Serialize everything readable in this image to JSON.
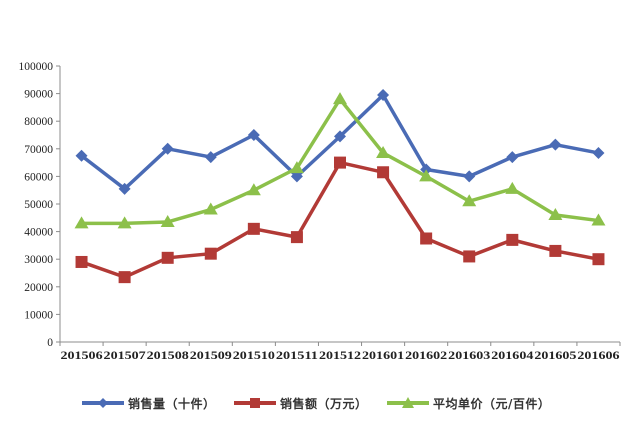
{
  "chart_data": {
    "type": "line",
    "title": "",
    "xlabel": "",
    "ylabel": "",
    "ylim": [
      0,
      100000
    ],
    "yticks": [
      0,
      10000,
      20000,
      30000,
      40000,
      50000,
      60000,
      70000,
      80000,
      90000,
      100000
    ],
    "grid": false,
    "legend_position": "bottom",
    "categories": [
      "201506",
      "201507",
      "201508",
      "201509",
      "201510",
      "201511",
      "201512",
      "201601",
      "201602",
      "201603",
      "201604",
      "201605",
      "201606"
    ],
    "series": [
      {
        "name": "销售量（十件）",
        "color": "#4a6bb5",
        "marker": "diamond",
        "values": [
          67500,
          55500,
          70000,
          67000,
          75000,
          60000,
          74500,
          89500,
          62500,
          60000,
          67000,
          71500,
          68500
        ]
      },
      {
        "name": "销售额（万元）",
        "color": "#b23a36",
        "marker": "square",
        "values": [
          29000,
          23500,
          30500,
          32000,
          41000,
          38000,
          65000,
          61500,
          37500,
          31000,
          37000,
          33000,
          30000
        ]
      },
      {
        "name": "平均单价（元/百件）",
        "color": "#8cc04a",
        "marker": "triangle",
        "values": [
          43000,
          43000,
          43500,
          48000,
          55000,
          63000,
          88000,
          68500,
          60000,
          51000,
          55500,
          46000,
          44000
        ]
      }
    ]
  },
  "legend": {
    "items": [
      {
        "label": "销售量（十件）",
        "color": "#4a6bb5",
        "marker": "diamond"
      },
      {
        "label": "销售额（万元）",
        "color": "#b23a36",
        "marker": "square"
      },
      {
        "label": "平均单价（元/百件）",
        "color": "#8cc04a",
        "marker": "triangle"
      }
    ]
  },
  "colors": {
    "axis": "#8c8c8c",
    "text": "#222222",
    "background": "#ffffff"
  }
}
